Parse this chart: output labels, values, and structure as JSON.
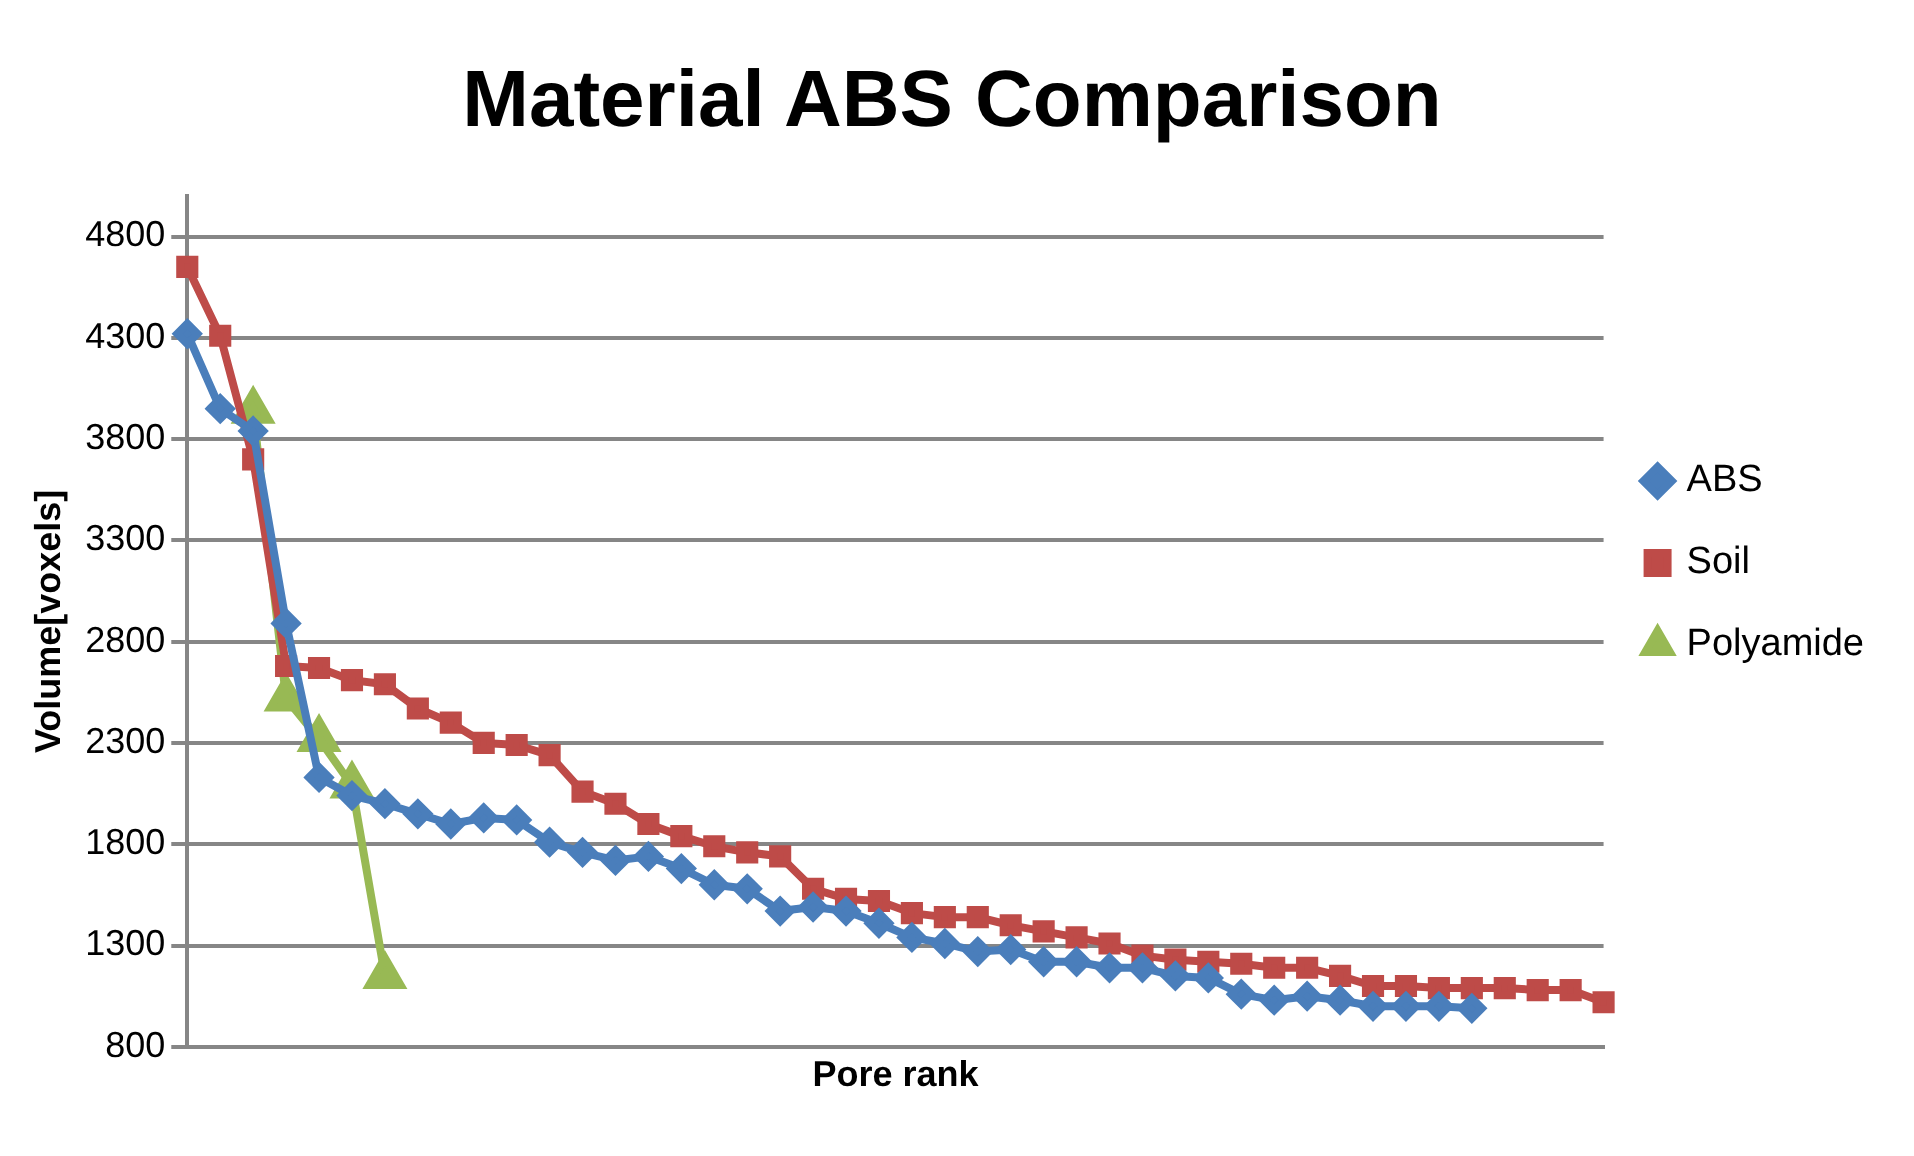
{
  "chart_data": {
    "type": "line",
    "title": "Material ABS Comparison",
    "xlabel": "Pore rank",
    "ylabel": "Volume[voxels]",
    "categories": [
      null,
      null,
      null,
      null,
      null,
      null,
      null,
      null,
      null,
      null,
      null,
      null,
      null,
      null,
      null,
      null,
      null,
      null,
      null,
      null,
      null,
      null,
      null,
      null,
      null,
      null,
      null,
      null,
      null,
      null,
      null,
      null,
      null,
      null,
      null,
      null,
      null,
      null,
      null,
      null,
      null,
      null,
      null,
      null
    ],
    "ylim": [
      800,
      5000
    ],
    "yticks": [
      800,
      1300,
      1800,
      2300,
      2800,
      3300,
      3800,
      4300,
      4800
    ],
    "grid": "y",
    "legend": "right",
    "tick_labels": "y",
    "series": [
      {
        "name": "ABS",
        "color": "#4a7ebb",
        "marker": "diamond",
        "values": [
          4320,
          3950,
          3840,
          2890,
          2130,
          2040,
          2000,
          1950,
          1900,
          1930,
          1920,
          1810,
          1760,
          1720,
          1740,
          1680,
          1600,
          1580,
          1470,
          1490,
          1470,
          1410,
          1340,
          1310,
          1270,
          1280,
          1220,
          1220,
          1190,
          1190,
          1150,
          1140,
          1060,
          1030,
          1050,
          1030,
          1000,
          1000,
          1000,
          990,
          null,
          null,
          null,
          null
        ]
      },
      {
        "name": "Soil",
        "color": "#be4b48",
        "marker": "square",
        "values": [
          4650,
          4310,
          3700,
          2680,
          2670,
          2610,
          2590,
          2470,
          2400,
          2300,
          2290,
          2240,
          2060,
          2000,
          1900,
          1840,
          1790,
          1760,
          1740,
          1580,
          1530,
          1520,
          1460,
          1440,
          1440,
          1400,
          1370,
          1340,
          1310,
          1250,
          1230,
          1220,
          1210,
          1190,
          1190,
          1150,
          1100,
          1100,
          1090,
          1090,
          1090,
          1080,
          1080,
          1020
        ]
      },
      {
        "name": "Polyamide",
        "color": "#98b954",
        "marker": "triangle",
        "values": [
          null,
          null,
          3940,
          2520,
          2320,
          2090,
          1150,
          null,
          null,
          null,
          null,
          null,
          null,
          null,
          null,
          null,
          null,
          null,
          null,
          null,
          null,
          null,
          null,
          null,
          null,
          null,
          null,
          null,
          null,
          null,
          null,
          null,
          null,
          null,
          null,
          null,
          null,
          null,
          null,
          null,
          null,
          null,
          null,
          null
        ]
      }
    ]
  }
}
